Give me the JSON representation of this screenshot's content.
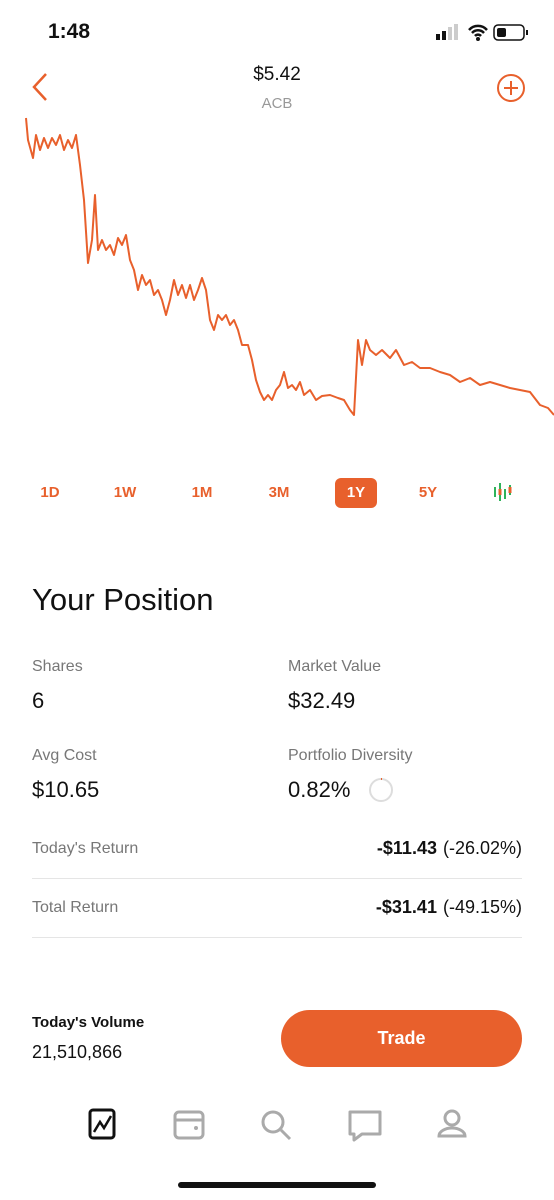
{
  "status": {
    "time": "1:48"
  },
  "header": {
    "price": "$5.42",
    "ticker": "ACB"
  },
  "ranges": {
    "items": [
      "1D",
      "1W",
      "1M",
      "3M",
      "1Y",
      "5Y"
    ],
    "selected": 4
  },
  "position": {
    "title": "Your Position",
    "stats": [
      {
        "label": "Shares",
        "value": "6"
      },
      {
        "label": "Market Value",
        "value": "$32.49"
      },
      {
        "label": "Avg Cost",
        "value": "$10.65"
      },
      {
        "label": "Portfolio Diversity",
        "value": "0.82%"
      }
    ],
    "returns": [
      {
        "label": "Today's Return",
        "amount": "-$11.43",
        "percent": "(-26.02%)"
      },
      {
        "label": "Total Return",
        "amount": "-$31.41",
        "percent": "(-49.15%)"
      }
    ]
  },
  "volume": {
    "label": "Today's Volume",
    "value": "21,510,866"
  },
  "trade": {
    "label": "Trade"
  }
}
